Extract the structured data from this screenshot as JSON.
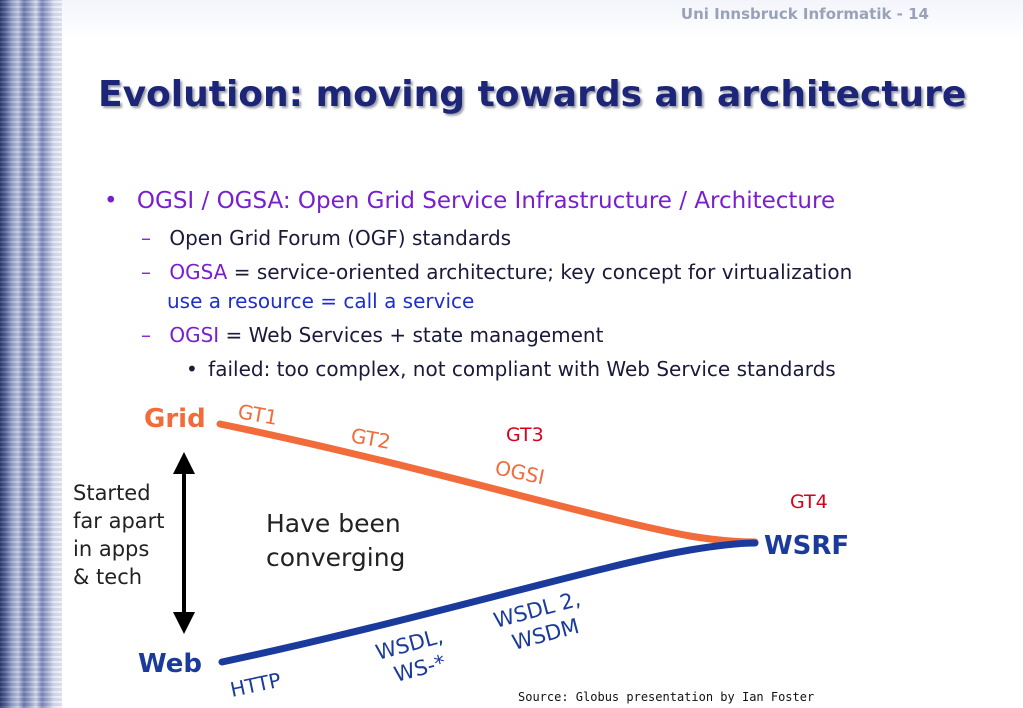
{
  "header": {
    "text": "Uni Innsbruck Informatik - 14"
  },
  "title": "Evolution: moving towards an architecture",
  "bullets": {
    "b1": {
      "marker": "•",
      "text": "OGSI / OGSA: Open Grid Service Infrastructure / Architecture"
    },
    "s1": {
      "dash": "–",
      "text": "Open Grid Forum (OGF) standards"
    },
    "s2": {
      "dash": "–",
      "term": "OGSA",
      "text": " = service-oriented architecture; key concept for virtualization",
      "cont": "use a resource = call a service"
    },
    "s3": {
      "dash": "–",
      "term": "OGSI",
      "text": " = Web Services + state management"
    },
    "s3a": {
      "marker": "•",
      "text": "failed: too complex, not compliant with Web Service standards"
    }
  },
  "diagram": {
    "grid_label": "Grid",
    "web_label": "Web",
    "wsrf_label": "WSRF",
    "gt1": "GT1",
    "gt2": "GT2",
    "gt3": "GT3",
    "gt4": "GT4",
    "ogsi": "OGSI",
    "http": "HTTP",
    "wsdl_ws": [
      "WSDL,",
      "WS-*"
    ],
    "wsdl2": [
      "WSDL 2,",
      "WSDM"
    ],
    "started": [
      "Started",
      "far apart",
      "in apps",
      "& tech"
    ],
    "converging": [
      "Have been",
      "converging"
    ],
    "colors": {
      "grid_line": "#f26b3a",
      "web_line": "#1a3b9c",
      "grid_text": "#f26b3a",
      "web_text": "#1a3b9c",
      "gt_red": "#d9001b"
    }
  },
  "source": "Source: Globus presentation by Ian Foster"
}
